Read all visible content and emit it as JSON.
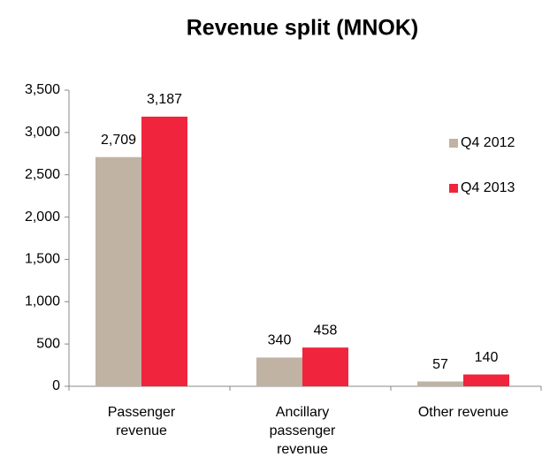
{
  "chart_data": {
    "type": "bar",
    "title": "Revenue split (MNOK)",
    "categories": [
      "Passenger revenue",
      "Ancillary passenger revenue",
      "Other revenue"
    ],
    "series": [
      {
        "name": "Q4 2012",
        "color": "#c0b3a4",
        "values": [
          2709,
          340,
          57
        ],
        "value_labels": [
          "2,709",
          "340",
          "57"
        ]
      },
      {
        "name": "Q4 2013",
        "color": "#f0243c",
        "values": [
          3187,
          458,
          140
        ],
        "value_labels": [
          "3,187",
          "458",
          "140"
        ]
      }
    ],
    "ylim": [
      0,
      3500
    ],
    "yticks": [
      0,
      500,
      {
        "value": 1000,
        "label": "1,000"
      },
      {
        "value": 1500,
        "label": "1,500"
      },
      {
        "value": 2000,
        "label": "2,000"
      },
      {
        "value": 2500,
        "label": "2,500"
      },
      {
        "value": 3000,
        "label": "3,000"
      },
      {
        "value": 3500,
        "label": "3,500"
      }
    ],
    "legend": "right"
  }
}
